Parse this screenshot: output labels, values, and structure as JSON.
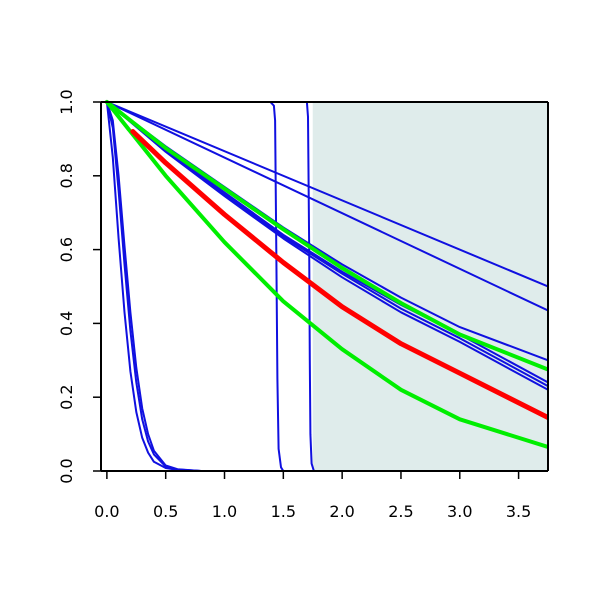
{
  "chart_data": {
    "type": "line",
    "title": "",
    "xlabel": "",
    "ylabel": "",
    "xlim": [
      -0.05,
      3.75
    ],
    "ylim": [
      0.0,
      1.0
    ],
    "x_ticks": [
      "0.0",
      "0.5",
      "1.0",
      "1.5",
      "2.0",
      "2.5",
      "3.0",
      "3.5"
    ],
    "y_ticks": [
      "0.0",
      "0.2",
      "0.4",
      "0.6",
      "0.8",
      "1.0"
    ],
    "grid": false,
    "legend": "none",
    "shaded_region": {
      "x_from": 1.75,
      "x_to": 3.75,
      "color": "#dfeceb"
    },
    "colors": {
      "blue": "#1010e0",
      "red": "#ff0000",
      "green": "#00ee00",
      "axis": "#000000"
    },
    "series": [
      {
        "color": "blue",
        "width": 2,
        "x": [
          0.0,
          3.75
        ],
        "y": [
          1.0,
          0.5
        ]
      },
      {
        "color": "blue",
        "width": 2,
        "x": [
          0.0,
          3.75
        ],
        "y": [
          1.0,
          0.435
        ]
      },
      {
        "color": "blue",
        "width": 2,
        "x": [
          0.0,
          0.5,
          1.0,
          1.5,
          2.0,
          2.5,
          3.0,
          3.75
        ],
        "y": [
          1.0,
          0.88,
          0.77,
          0.66,
          0.56,
          0.47,
          0.39,
          0.3
        ]
      },
      {
        "color": "blue",
        "width": 2,
        "x": [
          0.0,
          0.5,
          1.0,
          1.5,
          2.0,
          2.5,
          3.0,
          3.75
        ],
        "y": [
          1.0,
          0.87,
          0.755,
          0.64,
          0.54,
          0.45,
          0.37,
          0.24
        ]
      },
      {
        "color": "blue",
        "width": 2,
        "x": [
          0.0,
          0.5,
          1.0,
          1.5,
          2.0,
          2.5,
          3.0,
          3.75
        ],
        "y": [
          1.0,
          0.87,
          0.75,
          0.635,
          0.535,
          0.44,
          0.36,
          0.23
        ]
      },
      {
        "color": "blue",
        "width": 2,
        "x": [
          0.0,
          0.5,
          1.0,
          1.5,
          2.0,
          2.5,
          3.0,
          3.75
        ],
        "y": [
          1.0,
          0.865,
          0.745,
          0.63,
          0.525,
          0.43,
          0.35,
          0.22
        ]
      },
      {
        "color": "blue",
        "width": 2,
        "x": [
          0.0,
          0.05,
          0.1,
          0.15,
          0.2,
          0.25,
          0.3,
          0.35,
          0.4,
          0.5,
          0.6,
          0.8,
          1.0,
          1.2
        ],
        "y": [
          1.0,
          0.85,
          0.63,
          0.43,
          0.27,
          0.16,
          0.09,
          0.05,
          0.025,
          0.008,
          0.003,
          0.0,
          0.0,
          0.0
        ]
      },
      {
        "color": "blue",
        "width": 2,
        "x": [
          0.0,
          0.05,
          0.1,
          0.15,
          0.2,
          0.25,
          0.3,
          0.35,
          0.4,
          0.5,
          0.6,
          0.8,
          1.0,
          1.2
        ],
        "y": [
          1.0,
          0.93,
          0.76,
          0.56,
          0.38,
          0.24,
          0.14,
          0.08,
          0.045,
          0.012,
          0.004,
          0.0,
          0.0,
          0.0
        ]
      },
      {
        "color": "blue",
        "width": 2,
        "x": [
          0.0,
          0.05,
          0.1,
          0.15,
          0.2,
          0.25,
          0.3,
          0.35,
          0.4,
          0.5,
          0.6,
          0.8,
          1.0,
          1.2
        ],
        "y": [
          1.0,
          0.95,
          0.8,
          0.61,
          0.43,
          0.28,
          0.17,
          0.1,
          0.055,
          0.015,
          0.005,
          0.0,
          0.0,
          0.0
        ]
      },
      {
        "color": "blue",
        "width": 2,
        "x": [
          0.0,
          1.39,
          1.42,
          1.43,
          1.44,
          1.45,
          1.46,
          1.48,
          1.5,
          3.75
        ],
        "y": [
          1.0,
          1.0,
          0.99,
          0.95,
          0.6,
          0.25,
          0.06,
          0.01,
          0.0,
          0.0
        ]
      },
      {
        "color": "blue",
        "width": 2,
        "x": [
          0.0,
          1.7,
          1.71,
          1.72,
          1.725,
          1.73,
          1.74,
          1.76,
          3.75
        ],
        "y": [
          1.0,
          1.0,
          0.96,
          0.6,
          0.3,
          0.1,
          0.02,
          0.0,
          0.0
        ]
      },
      {
        "color": "green",
        "width": 4,
        "x": [
          0.0,
          0.5,
          1.0,
          1.5,
          2.0,
          2.5,
          3.0,
          3.75
        ],
        "y": [
          1.0,
          0.875,
          0.765,
          0.655,
          0.55,
          0.455,
          0.37,
          0.275
        ]
      },
      {
        "color": "green",
        "width": 4,
        "x": [
          0.0,
          0.5,
          1.0,
          1.5,
          2.0,
          2.5,
          3.0,
          3.75
        ],
        "y": [
          1.0,
          0.8,
          0.62,
          0.46,
          0.33,
          0.22,
          0.14,
          0.065
        ]
      },
      {
        "color": "red",
        "width": 5,
        "x": [
          0.22,
          0.5,
          1.0,
          1.5,
          2.0,
          2.5,
          3.0,
          3.75
        ],
        "y": [
          0.92,
          0.835,
          0.695,
          0.565,
          0.445,
          0.345,
          0.265,
          0.145
        ]
      }
    ]
  }
}
